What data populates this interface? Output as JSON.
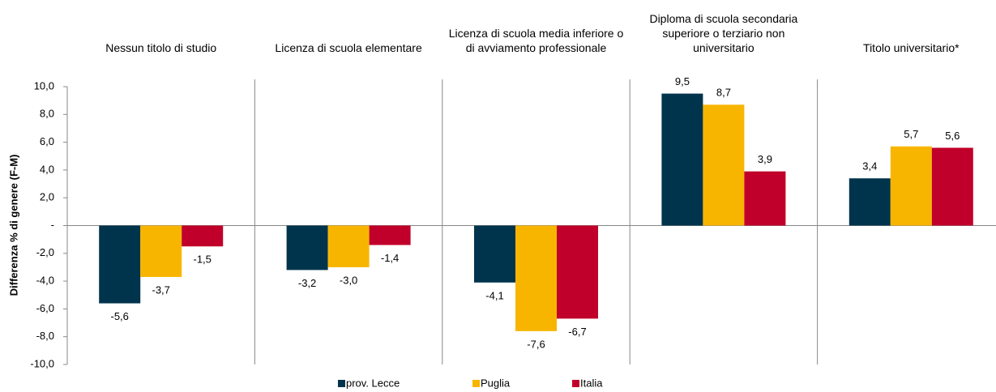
{
  "chart_data": {
    "type": "bar",
    "y_label": "Differenza % di genere (F-M)",
    "categories": [
      "Nessun titolo di studio",
      "Licenza di scuola elementare",
      "Licenza di scuola media inferiore o di avviamento professionale",
      "Diploma di scuola secondaria superiore o terziario non universitario",
      "Titolo universitario*"
    ],
    "series": [
      {
        "name": "prov. Lecce",
        "color": "#00344d",
        "values": [
          -5.6,
          -3.2,
          -4.1,
          9.5,
          3.4
        ],
        "value_labels": [
          "-5,6",
          "-3,2",
          "-4,1",
          "9,5",
          "3,4"
        ]
      },
      {
        "name": "Puglia",
        "color": "#f8b500",
        "values": [
          -3.7,
          -3.0,
          -7.6,
          8.7,
          5.7
        ],
        "value_labels": [
          "-3,7",
          "-3,0",
          "-7,6",
          "8,7",
          "5,7"
        ]
      },
      {
        "name": "Italia",
        "color": "#c0002a",
        "values": [
          -1.5,
          -1.4,
          -6.7,
          3.9,
          5.6
        ],
        "value_labels": [
          "-1,5",
          "-1,4",
          "-6,7",
          "3,9",
          "5,6"
        ]
      }
    ],
    "ylim": [
      -10,
      10
    ],
    "yticks": [
      {
        "value": -10,
        "label": "-10,0"
      },
      {
        "value": -8,
        "label": "-8,0"
      },
      {
        "value": -6,
        "label": "-6,0"
      },
      {
        "value": -4,
        "label": "-4,0"
      },
      {
        "value": -2,
        "label": "-2,0"
      },
      {
        "value": 0,
        "label": "-"
      },
      {
        "value": 2,
        "label": "2,0"
      },
      {
        "value": 4,
        "label": "4,0"
      },
      {
        "value": 6,
        "label": "6,0"
      },
      {
        "value": 8,
        "label": "8,0"
      },
      {
        "value": 10,
        "label": "10,0"
      }
    ],
    "legend": "bottom"
  }
}
